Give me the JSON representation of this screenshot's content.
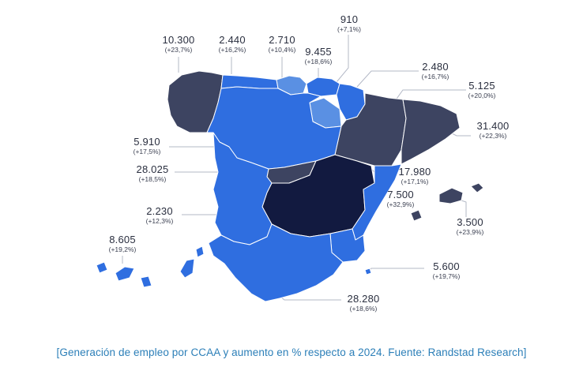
{
  "caption": "[Generación de empleo por CCAA y aumento en % respecto a 2024. Fuente: Randstad Research]",
  "colors": {
    "dark_navy": "#121a40",
    "dark_slate": "#3d4461",
    "medium_blue": "#2f6ee0",
    "light_blue": "#5a90e3",
    "leader_line": "#b3b8c6",
    "caption": "#2c7fb8"
  },
  "regions": [
    {
      "id": "galicia",
      "value": "10.300",
      "change": "(+23,7%)",
      "tone": "dark_slate"
    },
    {
      "id": "asturias",
      "value": "2.440",
      "change": "(+16,2%)",
      "tone": "medium_blue"
    },
    {
      "id": "cantabria",
      "value": "2.710",
      "change": "(+10,4%)",
      "tone": "light_blue"
    },
    {
      "id": "pais-vasco",
      "value": "9.455",
      "change": "(+18,6%)",
      "tone": "medium_blue"
    },
    {
      "id": "la-rioja",
      "value": "910",
      "change": "(+7,1%)",
      "tone": "light_blue"
    },
    {
      "id": "navarra",
      "value": "2.480",
      "change": "(+16,7%)",
      "tone": "medium_blue"
    },
    {
      "id": "aragon",
      "value": "5.125",
      "change": "(+20,0%)",
      "tone": "dark_slate"
    },
    {
      "id": "cataluna",
      "value": "31.400",
      "change": "(+22,3%)",
      "tone": "dark_slate"
    },
    {
      "id": "castilla-y-leon",
      "value": "5.910",
      "change": "(+17,5%)",
      "tone": "medium_blue"
    },
    {
      "id": "madrid",
      "value": "28.025",
      "change": "(+18,5%)",
      "tone": "dark_slate"
    },
    {
      "id": "extremadura",
      "value": "2.230",
      "change": "(+12,3%)",
      "tone": "medium_blue"
    },
    {
      "id": "castilla-la-mancha",
      "value": "",
      "change": "",
      "tone": "dark_navy"
    },
    {
      "id": "comunidad-valenciana",
      "value": "17.980",
      "change": "(+17,1%)",
      "tone": "medium_blue"
    },
    {
      "id": "region-de-murcia",
      "value": "7.500",
      "change": "(+32,9%)",
      "tone": "medium_blue"
    },
    {
      "id": "baleares",
      "value": "3.500",
      "change": "(+23,9%)",
      "tone": "dark_slate"
    },
    {
      "id": "canarias",
      "value": "8.605",
      "change": "(+19,2%)",
      "tone": "medium_blue"
    },
    {
      "id": "andalucia",
      "value": "28.280",
      "change": "(+18,6%)",
      "tone": "medium_blue"
    },
    {
      "id": "ceuta-melilla",
      "value": "5.600",
      "change": "(+19,7%)",
      "tone": "medium_blue"
    }
  ]
}
